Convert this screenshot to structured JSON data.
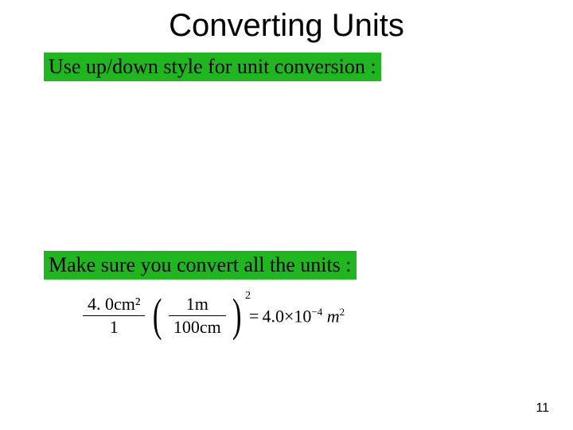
{
  "title": "Converting Units",
  "highlight1": "Use up/down style for unit conversion :",
  "highlight2": "Make sure you convert all the units :",
  "equation": {
    "left_frac": {
      "num": "4. 0cm²",
      "den": "1"
    },
    "paren_frac": {
      "num": "1m",
      "den": "100cm"
    },
    "paren_exp": "2",
    "rhs_coeff": "4.0",
    "rhs_exp": "−4",
    "rhs_unit": "m",
    "rhs_unit_exp": "2"
  },
  "page_number": "11",
  "colors": {
    "highlight_bg": "#1fb61f",
    "text": "#000000",
    "background": "#ffffff"
  },
  "fontsizes": {
    "title": 40,
    "highlight": 26,
    "equation": 22,
    "pagenum": 16
  }
}
